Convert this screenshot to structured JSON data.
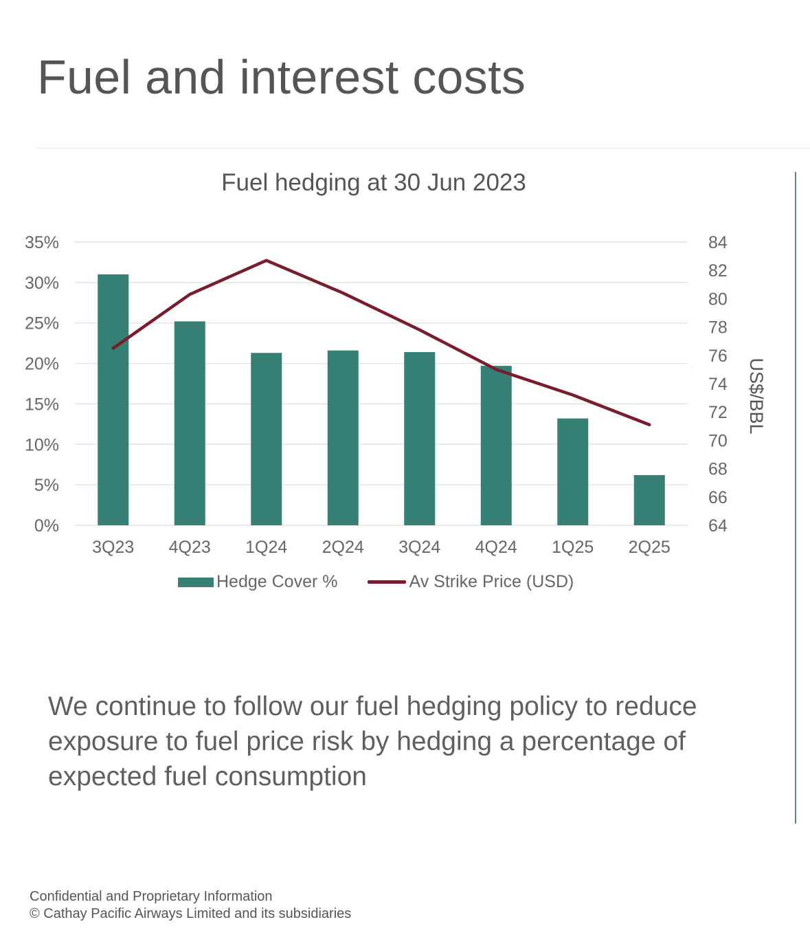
{
  "slide": {
    "title": "Fuel and interest costs",
    "body_text": "We continue to follow our fuel hedging policy to reduce exposure to fuel price risk by hedging a percentage of expected fuel consumption",
    "footer_line1": "Confidential and Proprietary Information",
    "footer_line2": "© Cathay Pacific Airways Limited and its subsidiaries"
  },
  "colors": {
    "bar": "#357f75",
    "line": "#7a1b2e",
    "grid": "#e4e4e4",
    "text": "#555555"
  },
  "chart_data": {
    "type": "bar",
    "title": "Fuel hedging at 30 Jun 2023",
    "categories": [
      "3Q23",
      "4Q23",
      "1Q24",
      "2Q24",
      "3Q24",
      "4Q24",
      "1Q25",
      "2Q25"
    ],
    "series": [
      {
        "name": "Hedge Cover %",
        "type": "bar",
        "axis": "left",
        "values": [
          31,
          25.2,
          21.3,
          21.6,
          21.4,
          19.7,
          13.2,
          6.2
        ]
      },
      {
        "name": "Av Strike Price (USD)",
        "type": "line",
        "axis": "right",
        "values": [
          76.5,
          80.3,
          82.7,
          80.4,
          77.8,
          75.0,
          73.2,
          71.1
        ]
      }
    ],
    "y_left": {
      "min": 0,
      "max": 35,
      "step": 5,
      "tick_labels": [
        "0%",
        "5%",
        "10%",
        "15%",
        "20%",
        "25%",
        "30%",
        "35%"
      ]
    },
    "y_right": {
      "min": 64,
      "max": 84,
      "step": 2,
      "label": "US$/BBL",
      "tick_labels": [
        "64",
        "66",
        "68",
        "70",
        "72",
        "74",
        "76",
        "78",
        "80",
        "82",
        "84"
      ]
    },
    "grid": true,
    "legend_position": "bottom"
  }
}
